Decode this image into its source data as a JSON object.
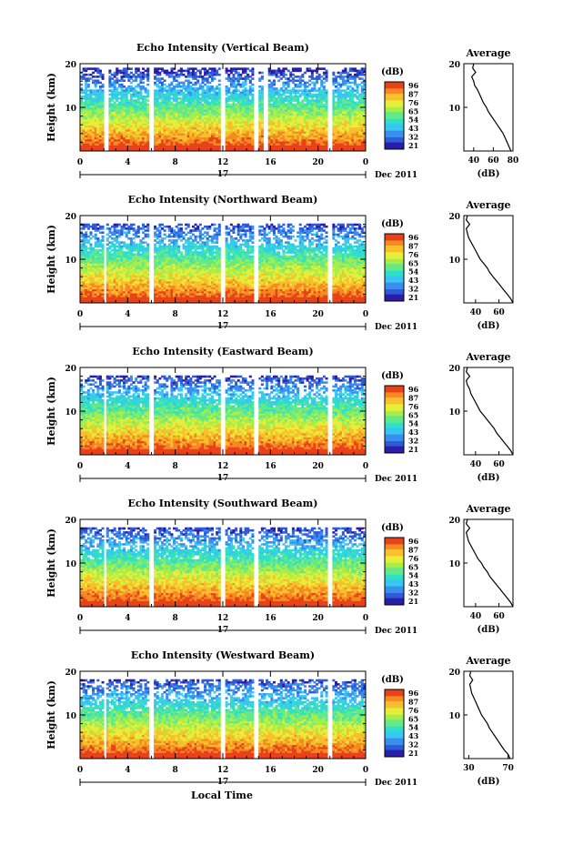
{
  "figure": {
    "xlabel_bottom": "Local Time",
    "date_label": "Dec 2011",
    "day_label": "17",
    "colorbar_unit": "(dB)",
    "colorbar_ticks": [
      "96",
      "87",
      "76",
      "65",
      "54",
      "43",
      "32",
      "21"
    ],
    "colorscale": [
      "#2a1ea8",
      "#2f5ad8",
      "#3a8ef0",
      "#37c7f0",
      "#2fe0c8",
      "#63e88a",
      "#a8ee4a",
      "#e6ee3a",
      "#f7c02c",
      "#f58a22",
      "#e8421a"
    ]
  },
  "chart_data": [
    {
      "type": "heatmap",
      "title": "Echo Intensity (Vertical Beam)",
      "ylabel": "Height (km)",
      "x_ticks": [
        "0",
        "4",
        "8",
        "12",
        "16",
        "20",
        "0"
      ],
      "y_ticks": [
        "20",
        "10"
      ],
      "xlim": [
        0,
        24
      ],
      "ylim": [
        0,
        20
      ],
      "gaps_hours": [
        [
          2.0,
          2.4
        ],
        [
          5.8,
          6.2
        ],
        [
          11.8,
          12.2
        ],
        [
          14.6,
          15.0
        ],
        [
          15.5,
          15.8
        ],
        [
          20.8,
          21.1
        ]
      ],
      "echo_top_km": 19,
      "profile": {
        "title": "Average",
        "xlabel": "(dB)",
        "x_ticks": [
          "40",
          "60",
          "80"
        ],
        "y_ticks": [
          "20",
          "10"
        ],
        "xlim": [
          30,
          80
        ],
        "ylim": [
          0,
          20
        ],
        "height_km": [
          0,
          1,
          2,
          3,
          4,
          5,
          6,
          7,
          8,
          9,
          10,
          11,
          12,
          13,
          14,
          15,
          16,
          17,
          18,
          19,
          20
        ],
        "db": [
          78,
          76,
          74,
          72,
          70,
          67,
          64,
          61,
          58,
          55,
          53,
          50,
          48,
          46,
          44,
          41,
          40,
          38,
          42,
          39,
          40
        ]
      }
    },
    {
      "type": "heatmap",
      "title": "Echo Intensity (Northward Beam)",
      "ylabel": "Height (km)",
      "x_ticks": [
        "0",
        "4",
        "8",
        "12",
        "16",
        "20",
        "0"
      ],
      "y_ticks": [
        "20",
        "10"
      ],
      "xlim": [
        0,
        24
      ],
      "ylim": [
        0,
        20
      ],
      "gaps_hours": [
        [
          2.0,
          2.3
        ],
        [
          5.8,
          6.1
        ],
        [
          11.8,
          12.1
        ],
        [
          14.7,
          15.0
        ],
        [
          20.8,
          21.1
        ]
      ],
      "echo_top_km": 18,
      "profile": {
        "title": "Average",
        "xlabel": "(dB)",
        "x_ticks": [
          "40",
          "60"
        ],
        "y_ticks": [
          "20",
          "10"
        ],
        "xlim": [
          30,
          72
        ],
        "ylim": [
          0,
          20
        ],
        "height_km": [
          0,
          1,
          2,
          3,
          4,
          5,
          6,
          7,
          8,
          9,
          10,
          11,
          12,
          13,
          14,
          15,
          16,
          17,
          18,
          19,
          20
        ],
        "db": [
          72,
          70,
          67,
          64,
          61,
          58,
          55,
          52,
          50,
          47,
          44,
          42,
          40,
          38,
          36,
          34,
          33,
          32,
          35,
          32,
          33
        ]
      }
    },
    {
      "type": "heatmap",
      "title": "Echo Intensity (Eastward Beam)",
      "ylabel": "Height (km)",
      "x_ticks": [
        "0",
        "4",
        "8",
        "12",
        "16",
        "20",
        "0"
      ],
      "y_ticks": [
        "20",
        "10"
      ],
      "xlim": [
        0,
        24
      ],
      "ylim": [
        0,
        20
      ],
      "gaps_hours": [
        [
          2.0,
          2.3
        ],
        [
          5.8,
          6.1
        ],
        [
          11.8,
          12.1
        ],
        [
          14.7,
          15.0
        ],
        [
          20.8,
          21.1
        ]
      ],
      "echo_top_km": 18,
      "profile": {
        "title": "Average",
        "xlabel": "(dB)",
        "x_ticks": [
          "40",
          "60"
        ],
        "y_ticks": [
          "20",
          "10"
        ],
        "xlim": [
          30,
          72
        ],
        "ylim": [
          0,
          20
        ],
        "height_km": [
          0,
          1,
          2,
          3,
          4,
          5,
          6,
          7,
          8,
          9,
          10,
          11,
          12,
          13,
          14,
          15,
          16,
          17,
          18,
          19,
          20
        ],
        "db": [
          72,
          70,
          67,
          64,
          61,
          58,
          56,
          53,
          50,
          47,
          44,
          42,
          40,
          38,
          36,
          35,
          33,
          32,
          35,
          32,
          33
        ]
      }
    },
    {
      "type": "heatmap",
      "title": "Echo Intensity (Southward Beam)",
      "ylabel": "Height (km)",
      "x_ticks": [
        "0",
        "4",
        "8",
        "12",
        "16",
        "20",
        "0"
      ],
      "y_ticks": [
        "20",
        "10"
      ],
      "xlim": [
        0,
        24
      ],
      "ylim": [
        0,
        20
      ],
      "gaps_hours": [
        [
          2.0,
          2.3
        ],
        [
          5.8,
          6.1
        ],
        [
          11.8,
          12.1
        ],
        [
          14.7,
          15.0
        ],
        [
          20.8,
          21.1
        ]
      ],
      "echo_top_km": 18,
      "profile": {
        "title": "Average",
        "xlabel": "(dB)",
        "x_ticks": [
          "40",
          "60"
        ],
        "y_ticks": [
          "20",
          "10"
        ],
        "xlim": [
          30,
          72
        ],
        "ylim": [
          0,
          20
        ],
        "height_km": [
          0,
          1,
          2,
          3,
          4,
          5,
          6,
          7,
          8,
          9,
          10,
          11,
          12,
          13,
          14,
          15,
          16,
          17,
          18,
          19,
          20
        ],
        "db": [
          72,
          70,
          67,
          64,
          61,
          58,
          55,
          52,
          50,
          47,
          45,
          42,
          40,
          38,
          36,
          34,
          33,
          32,
          35,
          32,
          33
        ]
      }
    },
    {
      "type": "heatmap",
      "title": "Echo Intensity (Westward Beam)",
      "ylabel": "Height (km)",
      "x_ticks": [
        "0",
        "4",
        "8",
        "12",
        "16",
        "20",
        "0"
      ],
      "y_ticks": [
        "20",
        "10"
      ],
      "xlim": [
        0,
        24
      ],
      "ylim": [
        0,
        20
      ],
      "gaps_hours": [
        [
          2.0,
          2.3
        ],
        [
          5.8,
          6.1
        ],
        [
          11.8,
          12.1
        ],
        [
          14.7,
          15.0
        ],
        [
          20.8,
          21.1
        ]
      ],
      "echo_top_km": 18,
      "profile": {
        "title": "Average",
        "xlabel": "(dB)",
        "x_ticks": [
          "30",
          "70"
        ],
        "y_ticks": [
          "20",
          "10"
        ],
        "xlim": [
          25,
          75
        ],
        "ylim": [
          0,
          20
        ],
        "height_km": [
          0,
          1,
          2,
          3,
          4,
          5,
          6,
          7,
          8,
          9,
          10,
          11,
          12,
          13,
          14,
          15,
          16,
          17,
          18,
          19,
          20
        ],
        "db": [
          72,
          70,
          66,
          63,
          60,
          57,
          54,
          51,
          49,
          46,
          43,
          41,
          39,
          37,
          35,
          33,
          32,
          31,
          34,
          31,
          32
        ]
      }
    }
  ]
}
